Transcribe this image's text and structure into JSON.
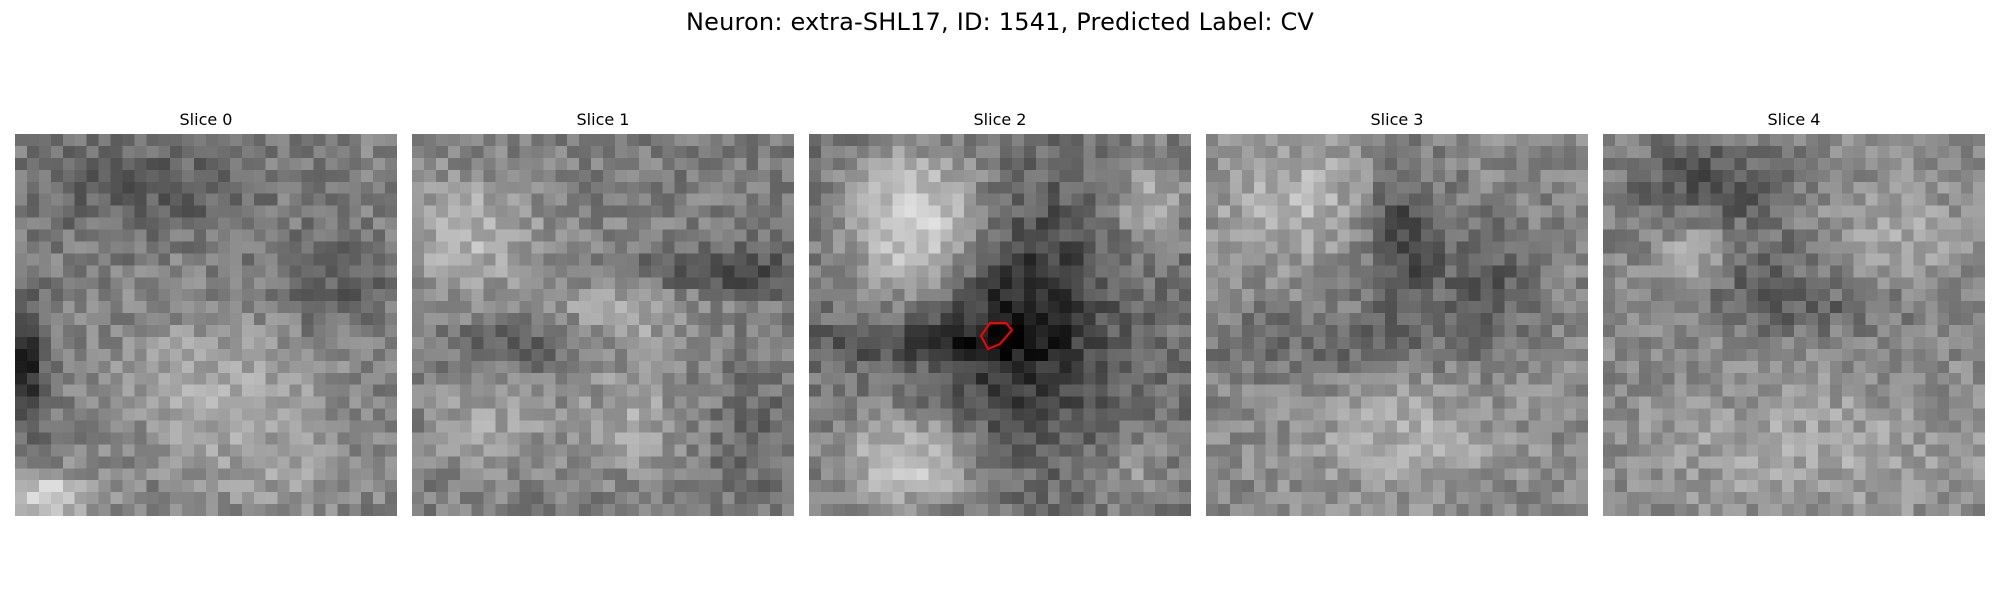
{
  "figure": {
    "title": "Neuron: extra-SHL17, ID: 1541, Predicted Label: CV"
  },
  "slices": [
    {
      "label": "Slice 0"
    },
    {
      "label": "Slice 1"
    },
    {
      "label": "Slice 2"
    },
    {
      "label": "Slice 3"
    },
    {
      "label": "Slice 4"
    }
  ],
  "colors": {
    "contour": "#ff0000",
    "colormap": "gray"
  }
}
